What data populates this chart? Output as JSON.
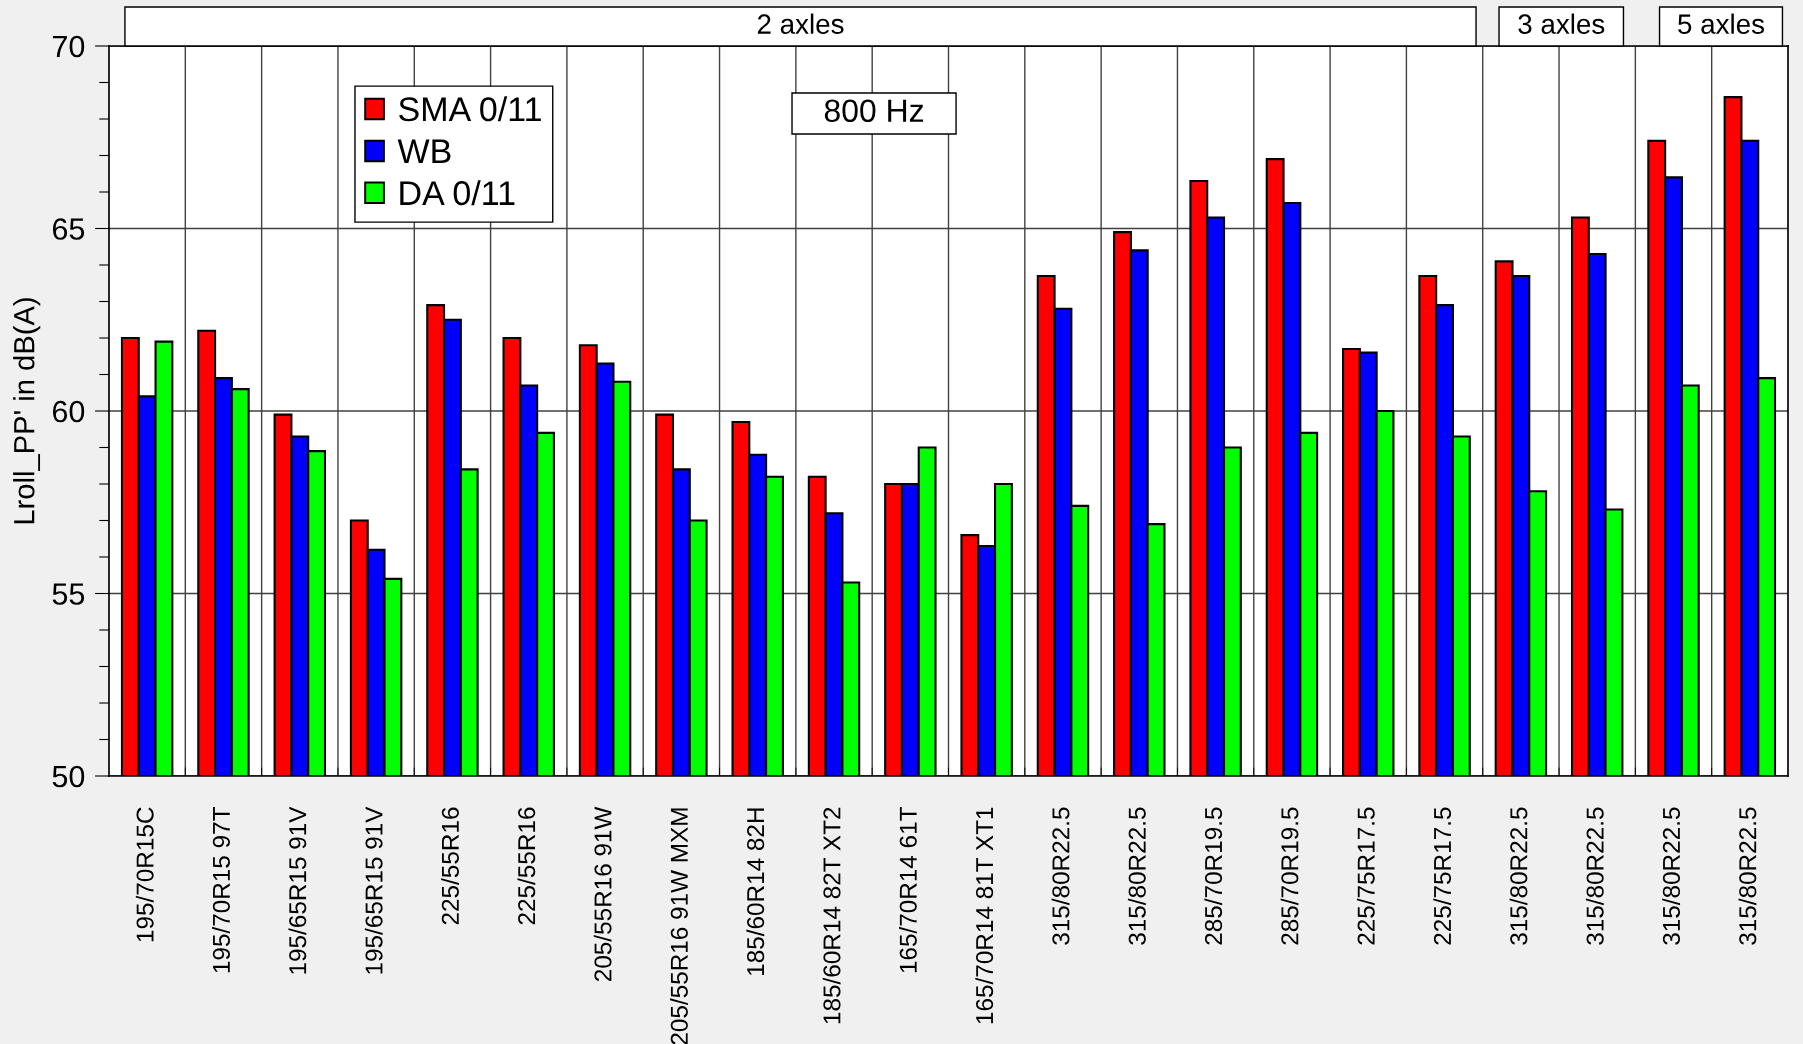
{
  "chart_data": {
    "type": "bar",
    "categories": [
      "195/70R15C",
      "195/70R15 97T",
      "195/65R15 91V",
      "195/65R15 91V",
      "225/55R16",
      "225/55R16",
      "205/55R16 91W",
      "205/55R16 91W MXM",
      "185/60R14 82H",
      "185/60R14 82T XT2",
      "165/70R14 61T",
      "165/70R14 81T XT1",
      "315/80R22.5",
      "315/80R22.5",
      "285/70R19.5",
      "285/70R19.5",
      "225/75R17.5",
      "225/75R17.5",
      "315/80R22.5",
      "315/80R22.5",
      "315/80R22.5",
      "315/80R22.5"
    ],
    "series": [
      {
        "name": "SMA 0/11",
        "color": "#ff0000",
        "values": [
          62.0,
          62.2,
          59.9,
          57.0,
          62.9,
          62.0,
          61.8,
          59.9,
          59.7,
          58.2,
          58.0,
          56.6,
          63.7,
          64.9,
          66.3,
          66.9,
          61.7,
          63.7,
          64.1,
          65.3,
          67.4,
          68.6
        ]
      },
      {
        "name": "WB",
        "color": "#0000ff",
        "values": [
          60.4,
          60.9,
          59.3,
          56.2,
          62.5,
          60.7,
          61.3,
          58.4,
          58.8,
          57.2,
          58.0,
          56.3,
          62.8,
          64.4,
          65.3,
          65.7,
          61.6,
          62.9,
          63.7,
          64.3,
          66.4,
          67.4
        ]
      },
      {
        "name": "DA 0/11",
        "color": "#00ff00",
        "values": [
          61.9,
          60.6,
          58.9,
          55.4,
          58.4,
          59.4,
          60.8,
          57.0,
          58.2,
          55.3,
          59.0,
          58.0,
          57.4,
          56.9,
          59.0,
          59.4,
          60.0,
          59.3,
          57.8,
          57.3,
          60.7,
          60.9
        ]
      }
    ],
    "ylabel": "Lroll_PP' in dB(A)",
    "annotations": [
      "2 axles",
      "3 axles",
      "5 axles",
      "800 Hz"
    ],
    "ylim": [
      50,
      70
    ],
    "yticks": [
      50,
      {
        "value": 51,
        "label": null
      },
      {
        "value": 52,
        "label": null
      },
      {
        "value": 53,
        "label": null
      },
      {
        "value": 54,
        "label": null
      },
      55,
      {
        "value": 56,
        "label": null
      },
      {
        "value": 57,
        "label": null
      },
      {
        "value": 58,
        "label": null
      },
      {
        "value": 59,
        "label": null
      },
      60,
      {
        "value": 61,
        "label": null
      },
      {
        "value": 62,
        "label": null
      },
      {
        "value": 63,
        "label": null
      },
      {
        "value": 64,
        "label": null
      },
      65,
      {
        "value": 66,
        "label": null
      },
      {
        "value": 67,
        "label": null
      },
      {
        "value": 68,
        "label": null
      },
      {
        "value": 69,
        "label": null
      },
      70
    ],
    "grid": true,
    "legend": "top left"
  }
}
